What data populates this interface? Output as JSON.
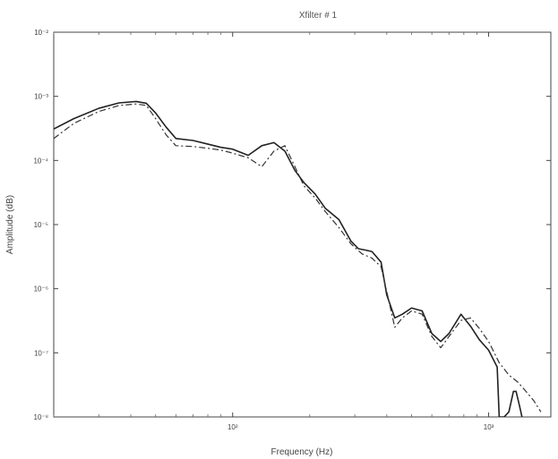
{
  "chart_data": {
    "type": "line",
    "title": "Xfilter # 1",
    "xlabel": "Frequency (Hz)",
    "ylabel": "Amplitude (dB)",
    "xscale": "log",
    "yscale": "log",
    "xlim": [
      20,
      1750
    ],
    "ylim": [
      1e-08,
      0.01
    ],
    "grid": false,
    "xticks": [
      {
        "value": 100,
        "label": "10²"
      },
      {
        "value": 1000,
        "label": "10³"
      }
    ],
    "yticks": [
      {
        "value": 0.01,
        "label": "10⁻²"
      },
      {
        "value": 0.001,
        "label": "10⁻³"
      },
      {
        "value": 0.0001,
        "label": "10⁻⁴"
      },
      {
        "value": 1e-05,
        "label": "10⁻⁵"
      },
      {
        "value": 1e-06,
        "label": "10⁻⁶"
      },
      {
        "value": 1e-07,
        "label": "10⁻⁷"
      },
      {
        "value": 1e-08,
        "label": "10⁻⁸"
      }
    ],
    "series": [
      {
        "style": "solid",
        "color": "#222222",
        "x": [
          20,
          24,
          30,
          36,
          42,
          46,
          50,
          55,
          60,
          70,
          80,
          90,
          100,
          115,
          130,
          145,
          160,
          175,
          190,
          210,
          230,
          260,
          290,
          310,
          330,
          350,
          380,
          400,
          430,
          460,
          500,
          550,
          600,
          650,
          700,
          780,
          850,
          920,
          1000,
          1080,
          1100,
          1120,
          1150,
          1200,
          1250,
          1280,
          1320,
          1350
        ],
        "y": [
          0.00031,
          0.00045,
          0.00065,
          0.00079,
          0.00083,
          0.00078,
          0.00055,
          0.00033,
          0.00022,
          0.000205,
          0.00018,
          0.00016,
          0.00015,
          0.00012,
          0.00017,
          0.00019,
          0.00014,
          7e-05,
          4.5e-05,
          3e-05,
          1.8e-05,
          1.2e-05,
          5.5e-06,
          4.2e-06,
          4e-06,
          3.8e-06,
          2.6e-06,
          8e-07,
          3.5e-07,
          4e-07,
          5e-07,
          4.5e-07,
          2e-07,
          1.5e-07,
          2e-07,
          4e-07,
          2.6e-07,
          1.6e-07,
          1.1e-07,
          6e-08,
          1e-08,
          1e-08,
          1e-08,
          1.2e-08,
          2.5e-08,
          2.5e-08,
          1.5e-08,
          1e-08
        ]
      },
      {
        "style": "dashdot",
        "color": "#333333",
        "x": [
          20,
          24,
          30,
          36,
          42,
          46,
          50,
          55,
          60,
          70,
          80,
          90,
          100,
          115,
          130,
          145,
          160,
          175,
          190,
          210,
          230,
          260,
          290,
          320,
          350,
          380,
          400,
          430,
          460,
          500,
          550,
          600,
          650,
          700,
          780,
          850,
          920,
          1000,
          1100,
          1200,
          1300,
          1400,
          1500,
          1600
        ],
        "y": [
          0.00022,
          0.00038,
          0.00058,
          0.00072,
          0.00076,
          0.00072,
          0.00045,
          0.00025,
          0.00017,
          0.000165,
          0.000155,
          0.000145,
          0.00013,
          0.00011,
          8e-05,
          0.00014,
          0.00017,
          8e-05,
          4e-05,
          2.6e-05,
          1.6e-05,
          9e-06,
          5e-06,
          3.5e-06,
          3e-06,
          2.2e-06,
          9e-07,
          2.5e-07,
          3.5e-07,
          4.5e-07,
          4e-07,
          1.8e-07,
          1.2e-07,
          1.8e-07,
          3.2e-07,
          3.5e-07,
          2.4e-07,
          1.5e-07,
          7e-08,
          4.5e-08,
          3.5e-08,
          2.5e-08,
          1.8e-08,
          1.2e-08
        ]
      }
    ]
  }
}
